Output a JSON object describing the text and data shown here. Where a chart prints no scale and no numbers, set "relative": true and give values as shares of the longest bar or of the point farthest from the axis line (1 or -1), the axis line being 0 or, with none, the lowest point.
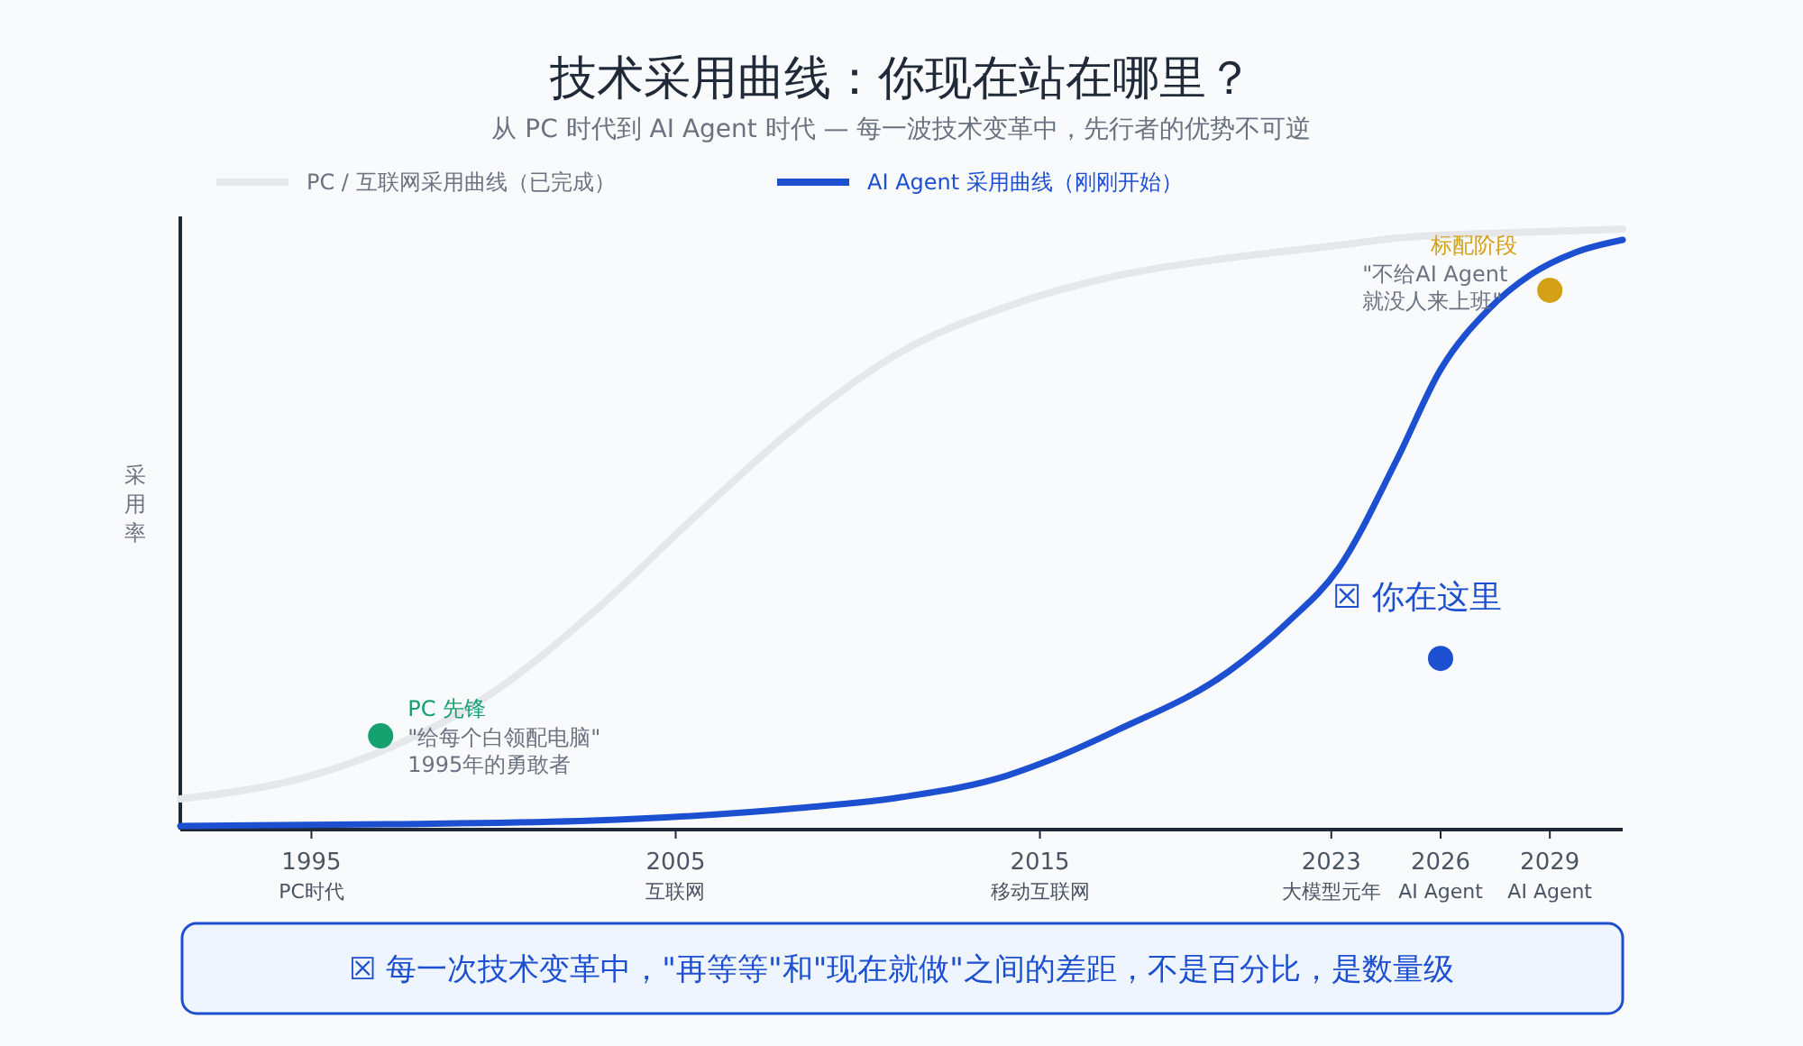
{
  "chart_data": {
    "type": "line",
    "title": "技术采用曲线：你现在站在哪里？",
    "subtitle": "从 PC 时代到 AI Agent 时代 — 每一波技术变革中，先行者的优势不可逆",
    "ylabel": "采用率",
    "relative": true,
    "legend": "top left",
    "grid": false,
    "marker": "none",
    "line_style": "solid",
    "xlim": [
      1991.4,
      2031
    ],
    "xticks": [
      1995,
      2005,
      2015,
      2023,
      2026,
      2029
    ],
    "series": [
      {
        "name": "PC / 互联网采用曲线（已完成）",
        "color": "#e5e7eb",
        "x": [
          1991.4,
          1995,
          1997.1,
          1999.9,
          2002.7,
          2005.6,
          2008.4,
          2011.2,
          2014.1,
          2017.1,
          2020.2,
          2023.2,
          2024.8,
          2027.9,
          2031
        ],
        "values": [
          0.051,
          0.09,
          0.135,
          0.225,
          0.36,
          0.525,
          0.676,
          0.796,
          0.871,
          0.922,
          0.952,
          0.973,
          0.985,
          0.994,
          1
        ]
      },
      {
        "name": "AI Agent 采用曲线（刚刚开始）",
        "color": "#1d4fd1",
        "x": [
          1991.4,
          1997.1,
          2002.7,
          2008.4,
          2011.2,
          2014.1,
          2015.2,
          2017.1,
          2020.2,
          2021.8,
          2023.2,
          2024.8,
          2026,
          2027.3,
          2028.5,
          2029.7,
          2031
        ],
        "values": [
          0.006,
          0.009,
          0.015,
          0.036,
          0.054,
          0.09,
          0.114,
          0.165,
          0.264,
          0.345,
          0.435,
          0.616,
          0.766,
          0.865,
          0.925,
          0.961,
          0.982
        ]
      },
      {
        "type": "scatter",
        "marker": "circle",
        "color": "#16a070",
        "x": [
          1996.9
        ],
        "values": [
          0.156
        ]
      },
      {
        "type": "scatter",
        "marker": "circle",
        "color": "#d4a017",
        "x": [
          2029
        ],
        "values": [
          0.898
        ]
      },
      {
        "type": "scatter",
        "marker": "circle",
        "color": "#1d4fd1",
        "x": [
          2026
        ],
        "values": [
          0.285
        ]
      }
    ],
    "annotations": [
      "PC 先锋",
      "\"给每个白领配电脑\"\n1995年的勇敢者",
      "标配阶段",
      "\"不给AI Agent\n就没人来上班\"",
      "☒ 你在这里",
      "PC时代",
      "互联网",
      "移动互联网",
      "大模型元年",
      "AI Agent",
      "AI Agent",
      "☒ 每一次技术变革中，\"再等等\"和\"现在就做\"之间的差距，不是百分比，是数量级"
    ]
  }
}
